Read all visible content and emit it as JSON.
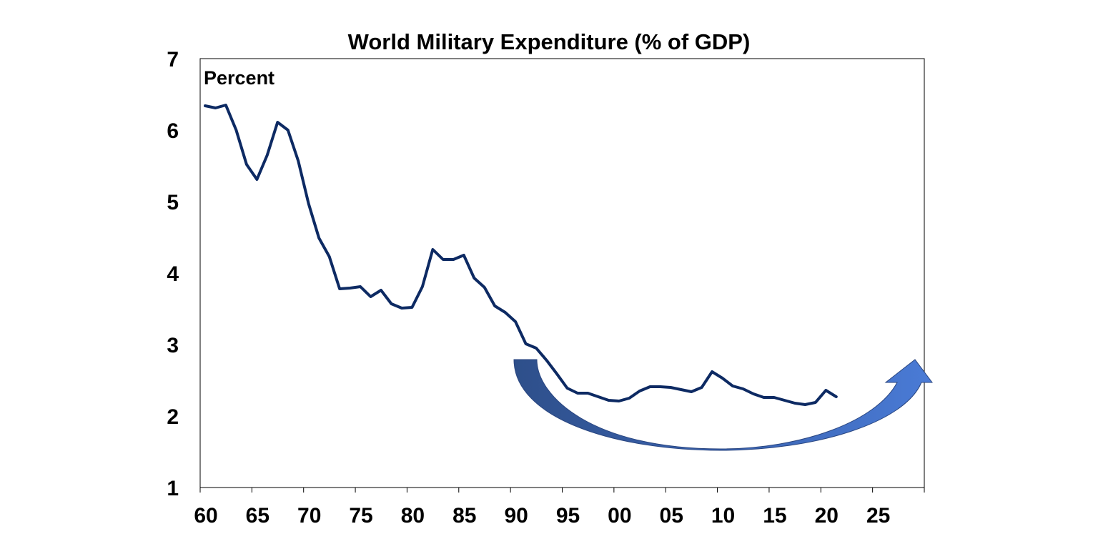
{
  "chart_data": {
    "type": "line",
    "title": "World Military Expenditure (% of GDP)",
    "ylabel": "Percent",
    "xlabel": "",
    "xlim": [
      1960,
      2030
    ],
    "ylim": [
      1,
      7
    ],
    "x_tick_labels": [
      "60",
      "65",
      "70",
      "75",
      "80",
      "85",
      "90",
      "95",
      "00",
      "05",
      "10",
      "15",
      "20",
      "25"
    ],
    "y_tick_labels": [
      "1",
      "2",
      "3",
      "4",
      "5",
      "6",
      "7"
    ],
    "grid": false,
    "line_color": "#0d2a63",
    "arrow_color": "#4472c4",
    "series": [
      {
        "name": "World Military Expenditure",
        "x": [
          1960,
          1961,
          1962,
          1963,
          1964,
          1965,
          1966,
          1967,
          1968,
          1969,
          1970,
          1971,
          1972,
          1973,
          1974,
          1975,
          1976,
          1977,
          1978,
          1979,
          1980,
          1981,
          1982,
          1983,
          1984,
          1985,
          1986,
          1987,
          1988,
          1989,
          1990,
          1991,
          1992,
          1993,
          1994,
          1995,
          1996,
          1997,
          1998,
          1999,
          2000,
          2001,
          2002,
          2003,
          2004,
          2005,
          2006,
          2007,
          2008,
          2009,
          2010,
          2011,
          2012,
          2013,
          2014,
          2015,
          2016,
          2017,
          2018,
          2019,
          2020,
          2021
        ],
        "values": [
          6.34,
          6.31,
          6.35,
          6.0,
          5.52,
          5.31,
          5.65,
          6.11,
          6.0,
          5.57,
          4.97,
          4.49,
          4.23,
          3.78,
          3.79,
          3.81,
          3.67,
          3.76,
          3.57,
          3.51,
          3.52,
          3.81,
          4.33,
          4.19,
          4.19,
          4.25,
          3.93,
          3.8,
          3.54,
          3.45,
          3.32,
          3.01,
          2.95,
          2.78,
          2.59,
          2.39,
          2.32,
          2.32,
          2.27,
          2.22,
          2.21,
          2.25,
          2.35,
          2.41,
          2.41,
          2.4,
          2.37,
          2.34,
          2.4,
          2.62,
          2.53,
          2.42,
          2.38,
          2.31,
          2.26,
          2.26,
          2.22,
          2.18,
          2.16,
          2.19,
          2.36,
          2.27
        ]
      }
    ]
  }
}
